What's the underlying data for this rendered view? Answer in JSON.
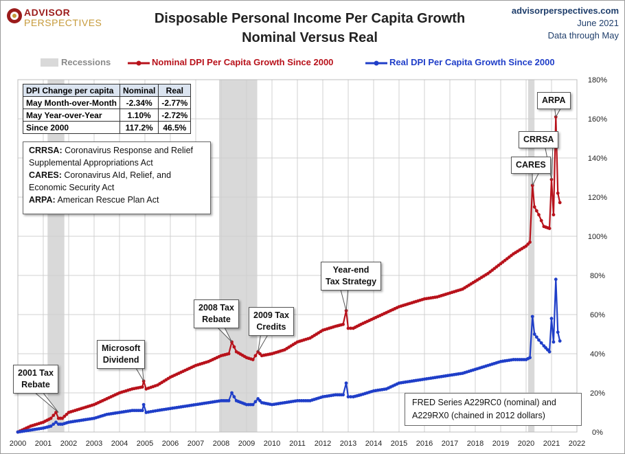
{
  "header": {
    "logo_line1": "ADVISOR",
    "logo_line2": "PERSPECTIVES",
    "title_line1": "Disposable Personal Income Per Capita Growth",
    "title_line2": "Nominal Versus Real",
    "site": "advisorperspectives.com",
    "date": "June 2021",
    "data_note": "Data through May"
  },
  "legend": {
    "recessions": "Recessions",
    "nominal": "Nominal DPI Per Capita Growth Since 2000",
    "real": "Real DPI Per Capita Growth Since 2000"
  },
  "table": {
    "headers": [
      "DPI Change per capita",
      "Nominal",
      "Real"
    ],
    "rows": [
      [
        "May Month-over-Month",
        "-2.34%",
        "-2.77%"
      ],
      [
        "May Year-over-Year",
        "1.10%",
        "-2.72%"
      ],
      [
        "Since 2000",
        "117.2%",
        "46.5%"
      ]
    ]
  },
  "notes": [
    {
      "abbr": "CRRSA:",
      "text": " Coronavirus Response and Relief Supplemental Appropriations Act"
    },
    {
      "abbr": "CARES:",
      "text": " Coronavirus AId, Relief, and Economic Security Act"
    },
    {
      "abbr": "ARPA:",
      "text": " American Rescue Plan Act"
    }
  ],
  "source_note": "FRED Series A229RC0 (nominal) and A229RX0 (chained in 2012 dollars)",
  "callouts": {
    "tax2001": [
      "2001 Tax",
      "Rebate"
    ],
    "microsoft": [
      "Microsoft",
      "Dividend"
    ],
    "tax2008": [
      "2008 Tax",
      "Rebate"
    ],
    "tax2009": [
      "2009 Tax",
      "Credits"
    ],
    "yearend": [
      "Year-end",
      "Tax Strategy"
    ],
    "cares": "CARES",
    "crrsa": "CRRSA",
    "arpa": "ARPA"
  },
  "colors": {
    "nominal": "#b8121b",
    "real": "#1f3ec8",
    "recession": "#d9d9d9",
    "grid": "#d0d0d0"
  },
  "chart_data": {
    "type": "line",
    "title": "Disposable Personal Income Per Capita Growth Nominal Versus Real",
    "xlim": [
      2000,
      2022
    ],
    "ylim": [
      0,
      180
    ],
    "y_axis_side": "right",
    "x_ticks": [
      "2000",
      "2001",
      "2002",
      "2003",
      "2004",
      "2005",
      "2006",
      "2007",
      "2008",
      "2009",
      "2010",
      "2011",
      "2012",
      "2013",
      "2014",
      "2015",
      "2016",
      "2017",
      "2018",
      "2019",
      "2020",
      "2021",
      "2022"
    ],
    "y_ticks": [
      "0%",
      "20%",
      "40%",
      "60%",
      "80%",
      "100%",
      "120%",
      "140%",
      "160%",
      "180%"
    ],
    "recessions": [
      [
        2001.17,
        2001.83
      ],
      [
        2007.92,
        2009.42
      ],
      [
        2020.08,
        2020.33
      ]
    ],
    "series": [
      {
        "name": "Nominal DPI Per Capita Growth Since 2000",
        "x": [
          2000,
          2000.5,
          2001,
          2001.3,
          2001.5,
          2001.6,
          2001.75,
          2002,
          2002.5,
          2003,
          2003.5,
          2004,
          2004.5,
          2004.9,
          2004.95,
          2005.05,
          2005.5,
          2006,
          2006.5,
          2007,
          2007.5,
          2008,
          2008.3,
          2008.42,
          2008.6,
          2009,
          2009.25,
          2009.45,
          2009.6,
          2010,
          2010.5,
          2011,
          2011.5,
          2012,
          2012.5,
          2012.8,
          2012.92,
          2013.0,
          2013.2,
          2013.5,
          2014,
          2014.5,
          2015,
          2015.5,
          2016,
          2016.5,
          2017,
          2017.5,
          2018,
          2018.5,
          2019,
          2019.5,
          2020,
          2020.15,
          2020.25,
          2020.33,
          2020.5,
          2020.7,
          2020.92,
          2021.0,
          2021.08,
          2021.17,
          2021.25,
          2021.33
        ],
        "values": [
          0,
          3,
          5,
          7,
          10,
          7,
          7,
          10,
          12,
          14,
          17,
          20,
          22,
          23,
          26,
          22,
          24,
          28,
          31,
          34,
          36,
          39,
          40,
          46,
          41,
          38,
          37,
          41,
          39,
          40,
          42,
          46,
          48,
          52,
          54,
          55,
          62,
          53,
          53,
          55,
          58,
          61,
          64,
          66,
          68,
          69,
          71,
          73,
          77,
          81,
          86,
          91,
          95,
          97,
          126,
          115,
          111,
          105,
          104,
          129,
          111,
          161,
          122,
          117.2
        ]
      },
      {
        "name": "Real DPI Per Capita Growth Since 2000",
        "x": [
          2000,
          2000.5,
          2001,
          2001.3,
          2001.5,
          2001.6,
          2001.75,
          2002,
          2002.5,
          2003,
          2003.5,
          2004,
          2004.5,
          2004.9,
          2004.95,
          2005.05,
          2005.5,
          2006,
          2006.5,
          2007,
          2007.5,
          2008,
          2008.3,
          2008.42,
          2008.6,
          2009,
          2009.25,
          2009.45,
          2009.6,
          2010,
          2010.5,
          2011,
          2011.5,
          2012,
          2012.5,
          2012.8,
          2012.92,
          2013.0,
          2013.2,
          2013.5,
          2014,
          2014.5,
          2015,
          2015.5,
          2016,
          2016.5,
          2017,
          2017.5,
          2018,
          2018.5,
          2019,
          2019.5,
          2020,
          2020.15,
          2020.25,
          2020.33,
          2020.5,
          2020.7,
          2020.92,
          2021.0,
          2021.08,
          2021.17,
          2021.25,
          2021.33
        ],
        "values": [
          0,
          1,
          2,
          3,
          5,
          4,
          4,
          5,
          6,
          7,
          9,
          10,
          11,
          11,
          14,
          10,
          11,
          12,
          13,
          14,
          15,
          16,
          16,
          20,
          16,
          14,
          14,
          17,
          15,
          14,
          15,
          16,
          16,
          18,
          19,
          19,
          25,
          18,
          18,
          19,
          21,
          22,
          25,
          26,
          27,
          28,
          29,
          30,
          32,
          34,
          36,
          37,
          37,
          38,
          59,
          50,
          47,
          44,
          41,
          58,
          46,
          78,
          51,
          46.5
        ]
      }
    ]
  }
}
